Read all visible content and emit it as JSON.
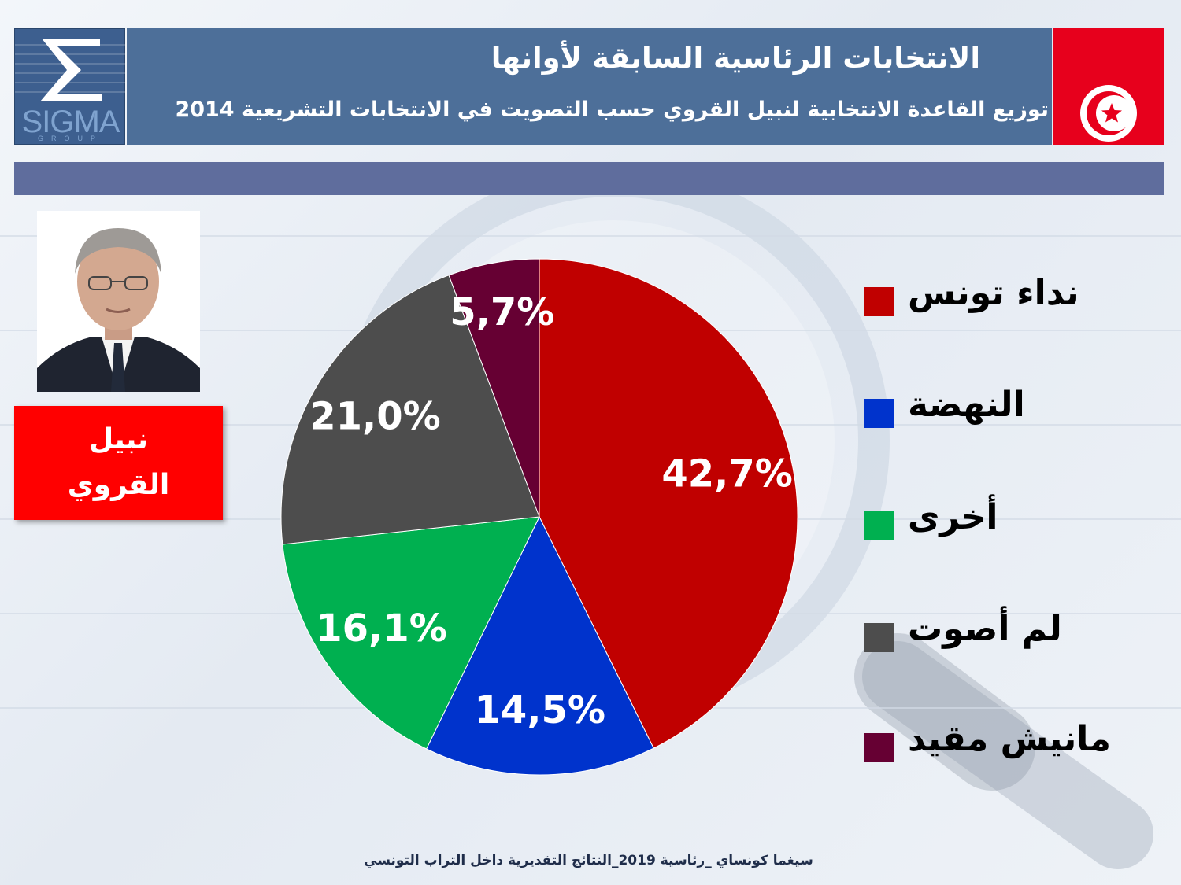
{
  "header": {
    "title": "الانتخابات الرئاسية السابقة لأوانها",
    "subtitle": "توزيع القاعدة الانتخابية لنبيل القروي حسب التصويت في الانتخابات التشريعية 2014"
  },
  "logo": {
    "name": "SIGMA",
    "sub": "GROUP",
    "icon": "sigma-icon"
  },
  "flag": {
    "icon": "tunisia-flag-icon",
    "color": "#e7001c"
  },
  "candidate": {
    "first_name": "نبيل",
    "last_name": "القروي"
  },
  "footer": {
    "text": "سيغما كونساي _رئاسية 2019_النتائج التقديرية داخل التراب التونسي"
  },
  "chart_data": {
    "type": "pie",
    "start_angle_deg": 0,
    "direction": "clockwise",
    "slices": [
      {
        "label": "نداء تونس",
        "value": 42.7,
        "display": "42,7%",
        "color": "#c00000"
      },
      {
        "label": "النهضة",
        "value": 14.5,
        "display": "14,5%",
        "color": "#0033cc"
      },
      {
        "label": "أخرى",
        "value": 16.1,
        "display": "16,1%",
        "color": "#00b050"
      },
      {
        "label": "لم أصوت",
        "value": 21.0,
        "display": "21,0%",
        "color": "#4d4d4d"
      },
      {
        "label": "مانيش مقيد",
        "value": 5.7,
        "display": "5,7%",
        "color": "#660033"
      }
    ],
    "legend_position": "right"
  }
}
